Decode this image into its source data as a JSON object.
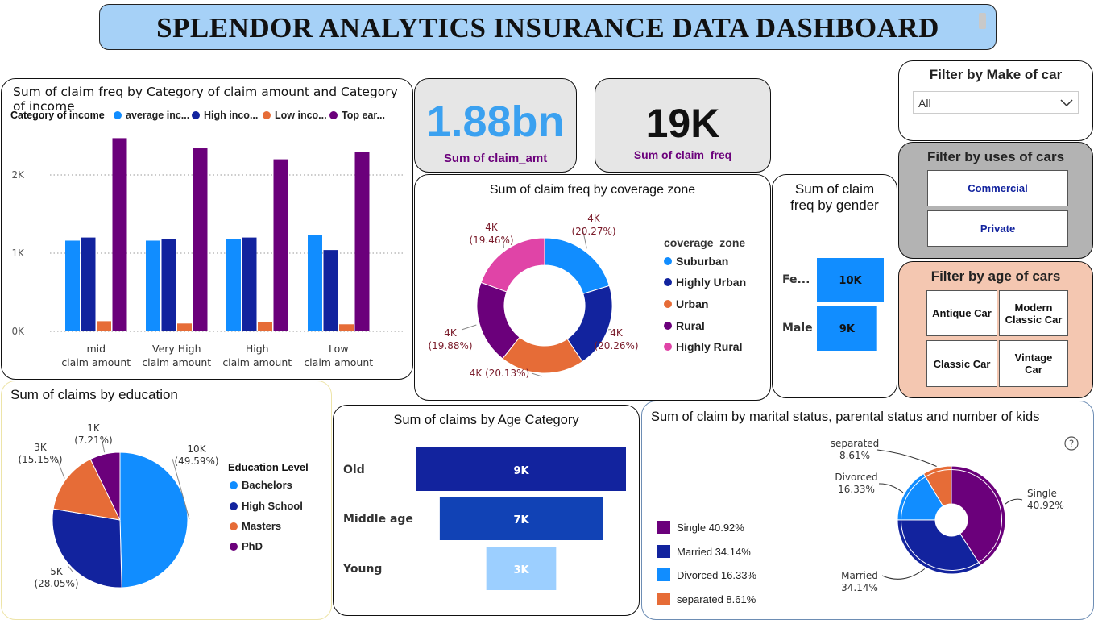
{
  "dashboard": {
    "title": "SPLENDOR ANALYTICS INSURANCE DATA DASHBOARD"
  },
  "colors": {
    "average_income": "#118dff",
    "high_income": "#12239e",
    "low_income": "#e66c37",
    "top_earner": "#6b007b",
    "highly_rural": "#e044a7",
    "light_blue": "#9ccfff",
    "mid_blue": "#1142b5"
  },
  "kpi": {
    "claim_amt": {
      "value": "1.88bn",
      "label": "Sum of claim_amt"
    },
    "claim_freq": {
      "value": "19K",
      "label": "Sum of claim_freq"
    }
  },
  "filters": {
    "make": {
      "title": "Filter by Make of car",
      "selected": "All"
    },
    "uses": {
      "title": "Filter by uses of cars",
      "options": [
        "Commercial",
        "Private"
      ]
    },
    "age": {
      "title": "Filter by age of cars",
      "options": [
        "Antique Car",
        "Modern Classic Car",
        "Classic Car",
        "Vintage Car"
      ]
    }
  },
  "chart_data": [
    {
      "type": "bar",
      "title": "Sum of claim freq by Category of claim amount and Category of income",
      "legend_title": "Category of income",
      "legend_labels": [
        "average inc...",
        "High inco...",
        "Low inco...",
        "Top ear..."
      ],
      "categories": [
        "mid claim amount",
        "Very High claim amount",
        "High claim amount",
        "Low claim amount"
      ],
      "series": [
        {
          "name": "average inc...",
          "values": [
            1160,
            1160,
            1180,
            1230
          ]
        },
        {
          "name": "High inco...",
          "values": [
            1200,
            1180,
            1200,
            1040
          ]
        },
        {
          "name": "Low inco...",
          "values": [
            130,
            100,
            120,
            90
          ]
        },
        {
          "name": "Top ear...",
          "values": [
            2470,
            2340,
            2200,
            2290
          ]
        }
      ],
      "yticks": [
        "0K",
        "1K",
        "2K"
      ],
      "ylim": [
        0,
        2500
      ],
      "grid": true
    },
    {
      "type": "pie",
      "subtype": "donut",
      "title": "Sum of claim freq by coverage zone",
      "legend_title": "coverage_zone",
      "categories": [
        "Suburban",
        "Highly Urban",
        "Urban",
        "Rural",
        "Highly Rural"
      ],
      "values": [
        20.27,
        20.26,
        20.13,
        19.88,
        19.46
      ],
      "data_labels": [
        {
          "value": "4K",
          "pct": "(20.27%)"
        },
        {
          "value": "4K",
          "pct": "(20.26%)"
        },
        {
          "value": "4K (20.13%)",
          "pct": ""
        },
        {
          "value": "4K",
          "pct": "(19.88%)"
        },
        {
          "value": "4K",
          "pct": "(19.46%)"
        }
      ]
    },
    {
      "type": "bar",
      "orientation": "horizontal",
      "title": "Sum of claim freq by gender",
      "categories": [
        "Fe...",
        "Male"
      ],
      "values": [
        10000,
        9000
      ],
      "data_labels": [
        "10K",
        "9K"
      ]
    },
    {
      "type": "pie",
      "title": "Sum of claims by education",
      "legend_title": "Education Level",
      "categories": [
        "Bachelors",
        "High School",
        "Masters",
        "PhD"
      ],
      "values": [
        49.59,
        28.05,
        15.15,
        7.21
      ],
      "data_labels": [
        {
          "value": "10K",
          "pct": "(49.59%)"
        },
        {
          "value": "5K",
          "pct": "(28.05%)"
        },
        {
          "value": "3K",
          "pct": "(15.15%)"
        },
        {
          "value": "1K",
          "pct": "(7.21%)"
        }
      ]
    },
    {
      "type": "bar",
      "subtype": "funnel",
      "title": "Sum of claims by Age Category",
      "categories": [
        "Old",
        "Middle age",
        "Young"
      ],
      "values": [
        9000,
        7000,
        3000
      ],
      "data_labels": [
        "9K",
        "7K",
        "3K"
      ]
    },
    {
      "type": "pie",
      "subtype": "donut",
      "title": "Sum of claim by marital status, parental status and number of kids",
      "categories": [
        "Single",
        "Married",
        "Divorced",
        "separated"
      ],
      "values": [
        40.92,
        34.14,
        16.33,
        8.61
      ],
      "legend_labels": [
        "Single 40.92%",
        "Married 34.14%",
        "Divorced 16.33%",
        "separated 8.61%"
      ],
      "data_labels": [
        {
          "name": "Single",
          "pct": "40.92%"
        },
        {
          "name": "Married",
          "pct": "34.14%"
        },
        {
          "name": "Divorced",
          "pct": "16.33%"
        },
        {
          "name": "separated",
          "pct": "8.61%"
        }
      ]
    }
  ]
}
